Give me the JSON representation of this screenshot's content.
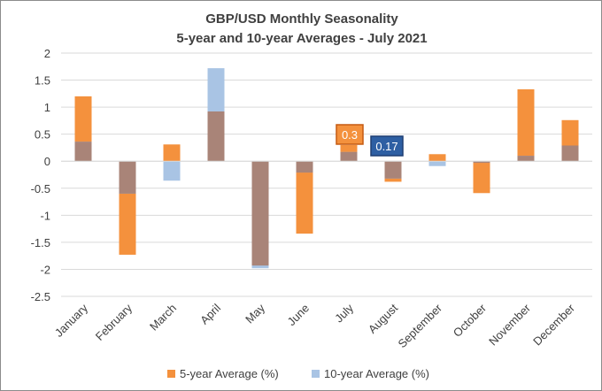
{
  "chart_data": {
    "type": "bar",
    "title": "GBP/USD Monthly  Seasonality",
    "subtitle": "5-year  and 10-year  Averages  - July 2021",
    "categories": [
      "January",
      "February",
      "March",
      "April",
      "May",
      "June",
      "July",
      "August",
      "September",
      "October",
      "November",
      "December"
    ],
    "series": [
      {
        "name": "5-year Average (%)",
        "color": "#f4913d",
        "values": [
          1.2,
          -1.73,
          0.31,
          0.92,
          -1.93,
          -1.34,
          0.3,
          -0.38,
          0.13,
          -0.59,
          1.33,
          0.76
        ]
      },
      {
        "name": "10-year Average (%)",
        "color": "#a9c4e4",
        "values": [
          0.36,
          -0.6,
          -0.36,
          1.72,
          -1.98,
          -0.21,
          0.17,
          -0.32,
          -0.09,
          -0.03,
          0.1,
          0.29
        ]
      }
    ],
    "overlap_color": "#a98478",
    "ylim": [
      -2.5,
      2
    ],
    "yticks": [
      "2",
      "1.5",
      "1",
      "0.5",
      "0",
      "-0.5",
      "-1",
      "-1.5",
      "-2",
      "-2.5"
    ],
    "grid": true,
    "legend": "bottom",
    "data_labels": [
      {
        "text": "0.3",
        "series": "5-year Average (%)",
        "category": "July",
        "color": "#f4913d",
        "border": "#c55a11"
      },
      {
        "text": "0.17",
        "series": "10-year Average (%)",
        "category": "July",
        "color": "#2e5fa3",
        "border": "#1f3f73"
      }
    ]
  }
}
